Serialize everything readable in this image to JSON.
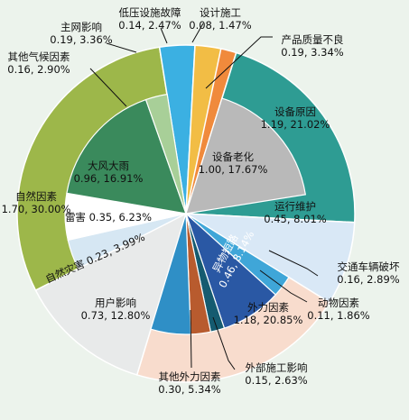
{
  "chart_data": {
    "type": "pie",
    "title": "",
    "unit_note": "",
    "outer_ring": [
      {
        "label": "设计施工",
        "value": 0.08,
        "percent": "1.47%",
        "color": "#3b5fae"
      },
      {
        "label": "产品质量不良",
        "value": 0.19,
        "percent": "3.34%",
        "color": "#f08a3c"
      },
      {
        "label": "设备原因",
        "value": 1.19,
        "percent": "21.02%",
        "color": "#2e9c93"
      },
      {
        "label": "运行维护",
        "value": 0.45,
        "percent": "8.01%",
        "color": "#d9e8f6"
      },
      {
        "label": "外力因素",
        "value": 1.18,
        "percent": "20.85%",
        "color": "#f8dccd"
      },
      {
        "label": "用户影响",
        "value": 0.73,
        "percent": "12.80%",
        "color": "#e8eaea"
      },
      {
        "label": "自然因素",
        "value": 1.7,
        "percent": "30.00%",
        "color": "#9db74a"
      },
      {
        "label": "主网影响",
        "value": 0.19,
        "percent": "3.36%",
        "color": "#3bb0e2"
      },
      {
        "label": "低压设施故障",
        "value": 0.14,
        "percent": "2.47%",
        "color": "#f2bd45"
      }
    ],
    "inner_ring": [
      {
        "label": "设备老化",
        "value": 1.0,
        "percent": "17.67%",
        "color": "#b9b9b9",
        "parent": "设备原因"
      },
      {
        "label": "交通车辆破坏",
        "value": 0.16,
        "percent": "2.89%",
        "color": "#3fa6d8",
        "parent": "外力因素"
      },
      {
        "label": "异物短路",
        "value": 0.46,
        "percent": "8.14%",
        "color": "#2a58a4",
        "parent": "外力因素"
      },
      {
        "label": "动物因素",
        "value": 0.11,
        "percent": "1.86%",
        "color": "#155b70",
        "parent": "外力因素"
      },
      {
        "label": "外部施工影响",
        "value": 0.15,
        "percent": "2.63%",
        "color": "#b85b2e",
        "parent": "外力因素"
      },
      {
        "label": "其他外力因素",
        "value": 0.3,
        "percent": "5.34%",
        "color": "#2f8fc6",
        "parent": "外力因素"
      },
      {
        "label": "自然灾害",
        "value": 0.23,
        "percent": "3.99%",
        "color": "#d6e7f3",
        "parent": "自然因素"
      },
      {
        "label": "雷害",
        "value": 0.35,
        "percent": "6.23%",
        "color": "#ffffff",
        "parent": "自然因素"
      },
      {
        "label": "大风大雨",
        "value": 0.96,
        "percent": "16.91%",
        "color": "#3a8a5c",
        "parent": "自然因素"
      },
      {
        "label": "其他气候因素",
        "value": 0.16,
        "percent": "2.90%",
        "color": "#a8cf98",
        "parent": "自然因素"
      }
    ]
  }
}
